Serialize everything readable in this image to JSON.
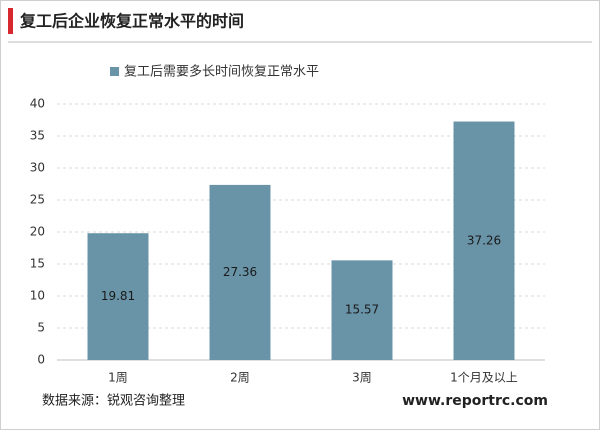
{
  "chart_data": {
    "type": "bar",
    "title": "复工后企业恢复正常水平的时间",
    "categories": [
      "1周",
      "2周",
      "3周",
      "1个月及以上"
    ],
    "series": [
      {
        "name": "复工后需要多长时间恢复正常水平",
        "color": "#6994a8",
        "values": [
          19.81,
          27.36,
          15.57,
          37.26
        ]
      }
    ],
    "ylim": [
      0,
      40
    ],
    "yticks": [
      0,
      5,
      10,
      15,
      20,
      25,
      30,
      35,
      40
    ],
    "grid": true
  },
  "source": "数据来源：锐观咨询整理",
  "website": "www.reportrc.com"
}
